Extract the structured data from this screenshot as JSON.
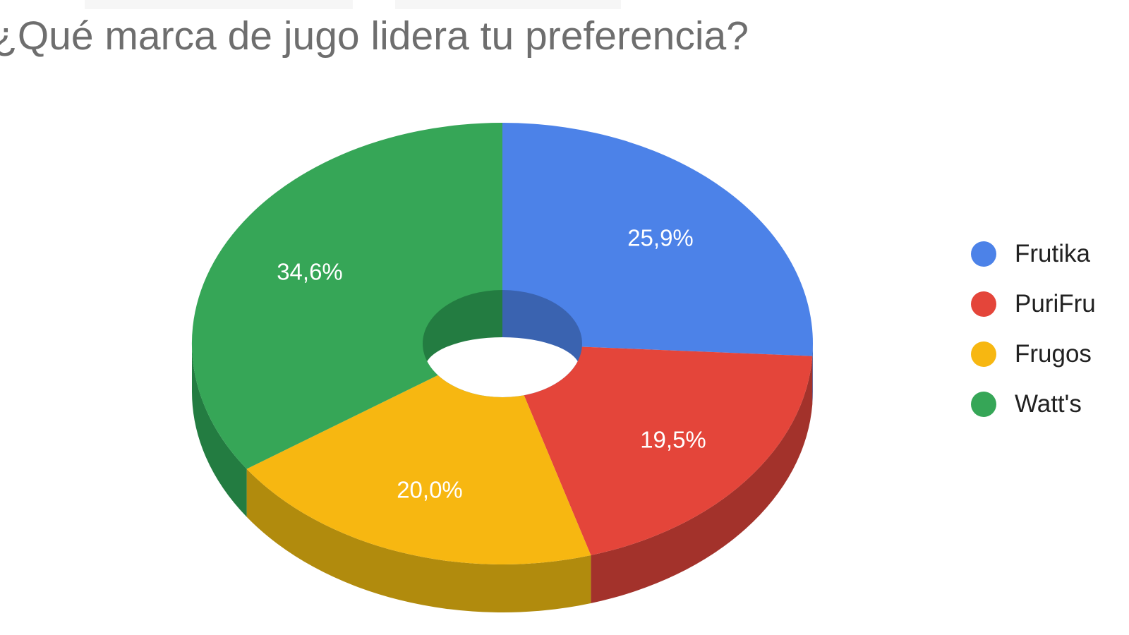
{
  "page": {
    "background": "#ffffff"
  },
  "header": {
    "title": "¿Qué marca de jugo lidera tu preferencia?",
    "title_color": "#6e6e6e"
  },
  "legend": {
    "position": "right",
    "text_color": "#212121",
    "items": [
      {
        "label": "Frutika",
        "color": "#4c82e8"
      },
      {
        "label": "PuriFru",
        "color": "#e4453a"
      },
      {
        "label": "Frugos",
        "color": "#f7b711"
      },
      {
        "label": "Watt's",
        "color": "#36a657"
      }
    ]
  },
  "chart_data": {
    "type": "pie",
    "variant": "3d-donut",
    "title": "¿Qué marca de jugo lidera tu preferencia?",
    "categories": [
      "Frutika",
      "PuriFru",
      "Frugos",
      "Watt's"
    ],
    "values": [
      25.9,
      19.5,
      20.0,
      34.6
    ],
    "percent_labels": [
      "25,9%",
      "19,5%",
      "20,0%",
      "34,6%"
    ],
    "slice_colors": [
      "#4c82e8",
      "#e4453a",
      "#f7b711",
      "#36a657"
    ],
    "side_colors": [
      "#3a63b0",
      "#a3322b",
      "#b18b0d",
      "#237c41"
    ],
    "label_color": "#ffffff",
    "start_angle_deg": 0,
    "rotation": "clockwise",
    "legend_position": "right",
    "grid": false
  }
}
